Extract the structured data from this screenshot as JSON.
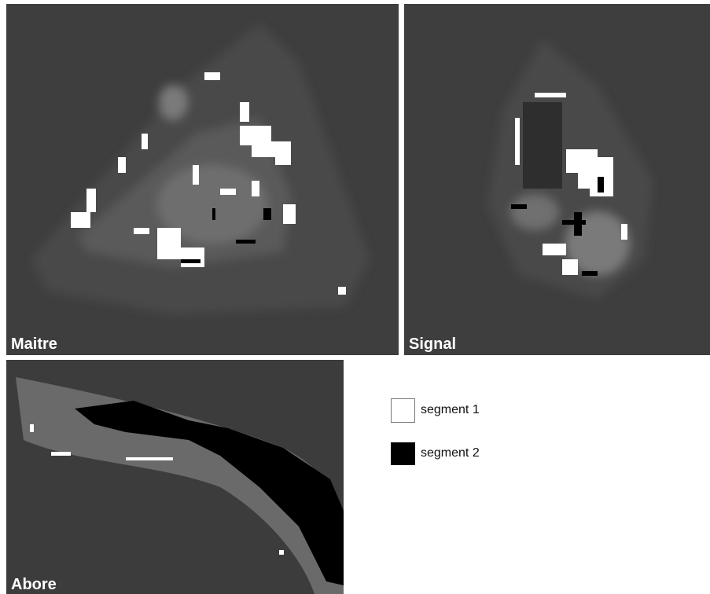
{
  "panels": [
    {
      "label": "Maitre"
    },
    {
      "label": "Signal"
    },
    {
      "label": "Abore"
    }
  ],
  "legend": [
    {
      "label": "segment 1"
    },
    {
      "label": "segment 2"
    }
  ]
}
